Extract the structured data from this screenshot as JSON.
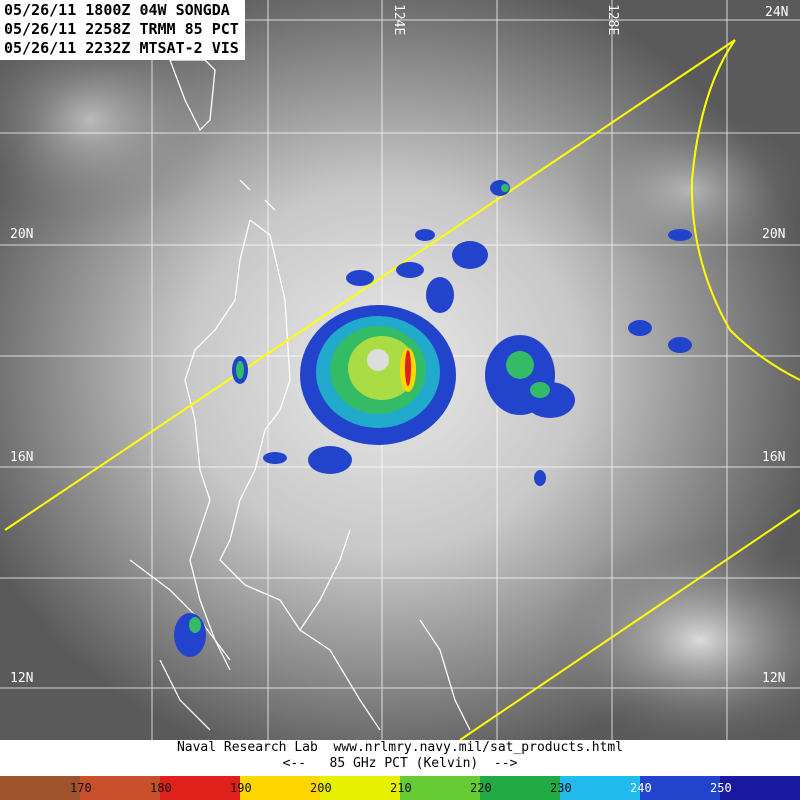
{
  "header": {
    "line1": "05/26/11 1800Z 04W SONGDA",
    "line2": "05/26/11 2258Z TRMM 85 PCT",
    "line3": "05/26/11 2232Z MTSAT-2 VIS"
  },
  "map": {
    "lat_labels_left": [
      "20N",
      "16N",
      "12N"
    ],
    "lat_labels_right": [
      "20N",
      "16N",
      "12N"
    ],
    "lon_labels": [
      "124E",
      "128E"
    ],
    "corner_label": "24N",
    "colors": {
      "swath": "#ffff00",
      "coast": "#ffffff",
      "grid": "#ffffff"
    }
  },
  "footer": {
    "credit": "Naval Research Lab  www.nrlmry.navy.mil/sat_products.html",
    "scale_title": "<--   85 GHz PCT (Kelvin)  -->"
  },
  "colorbar": {
    "ticks": [
      "170",
      "180",
      "190",
      "200",
      "210",
      "220",
      "230",
      "240",
      "250"
    ],
    "colors": [
      "#a0522d",
      "#c8502a",
      "#e0201a",
      "#ffd700",
      "#e6f000",
      "#66cc33",
      "#22aa44",
      "#22bbee",
      "#2244cc",
      "#1a1aa0"
    ]
  }
}
